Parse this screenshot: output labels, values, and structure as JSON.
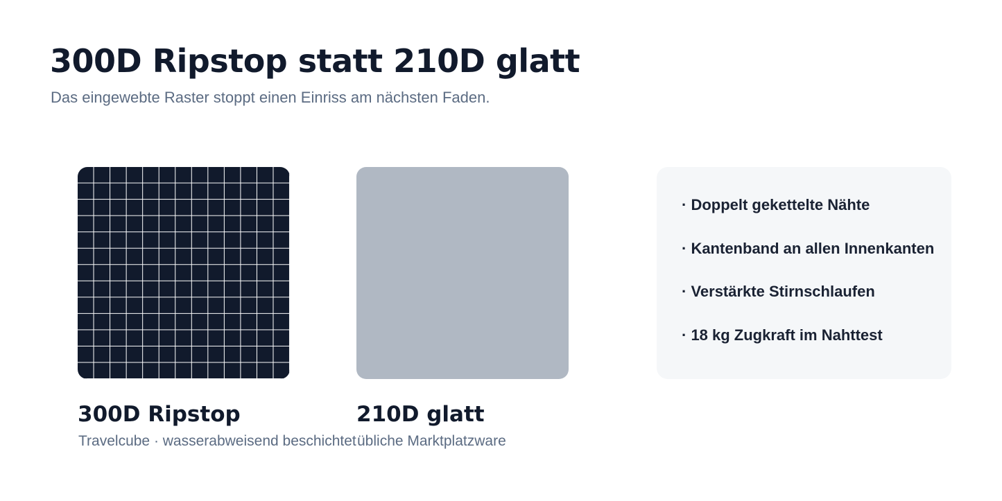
{
  "header": {
    "title": "300D Ripstop statt 210D glatt",
    "subtitle": "Das eingewebte Raster stoppt einen Einriss am nächsten Faden."
  },
  "swatches": [
    {
      "label": "300D Ripstop",
      "caption": "Travelcube · wasserabweisend beschichtet"
    },
    {
      "label": "210D glatt",
      "caption": "übliche Marktplatzware"
    }
  ],
  "features": [
    "· Doppelt gekettelte Nähte",
    "· Kantenband an allen Innenkanten",
    "· Verstärkte Stirnschlaufen",
    "· 18 kg Zugkraft im Nahttest"
  ]
}
